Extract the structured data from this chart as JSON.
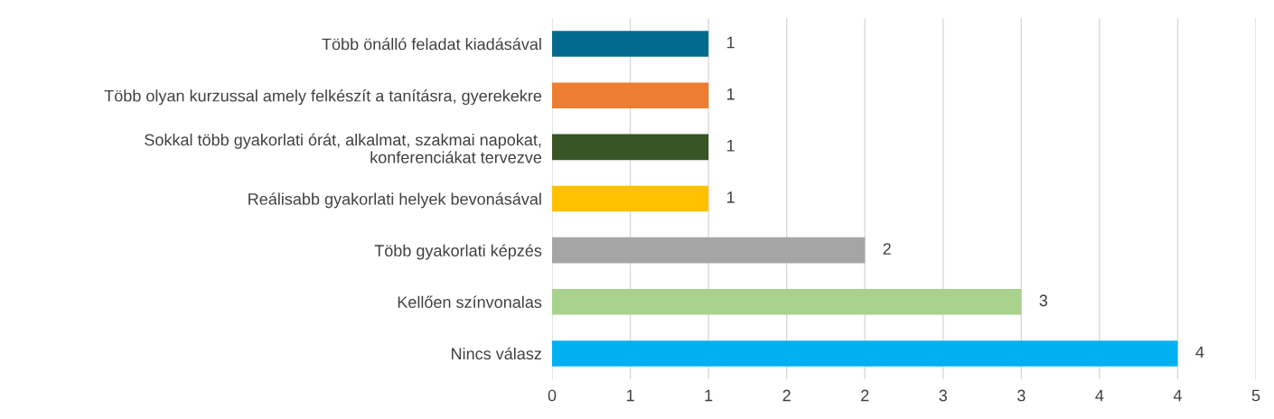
{
  "chart_data": {
    "type": "bar",
    "orientation": "horizontal",
    "categories": [
      "Több önálló feladat kiadásával",
      "Több olyan kurzussal amely felkészít a tanításra, gyerekekre",
      "Sokkal több gyakorlati órát, alkalmat, szakmai napokat,\nkonferenciákat tervezve",
      "Reálisabb gyakorlati helyek bevonásával",
      "Több gyakorlati képzés",
      "Kellően színvonalas",
      "Nincs válasz"
    ],
    "values": [
      1,
      1,
      1,
      1,
      2,
      3,
      4
    ],
    "colors": [
      "#006a8e",
      "#ed7d31",
      "#375623",
      "#ffc000",
      "#a5a5a5",
      "#a9d18e",
      "#00b0f0"
    ],
    "xlim": [
      0,
      4.5
    ],
    "xticks": [
      0,
      {
        "value": 0.5,
        "label": "1"
      },
      1,
      {
        "value": 1.5,
        "label": "2"
      },
      2,
      {
        "value": 2.5,
        "label": "3"
      },
      3,
      {
        "value": 3.5,
        "label": "4"
      },
      4,
      {
        "value": 4.5,
        "label": "5"
      }
    ],
    "grid": "x",
    "data_labels": true,
    "legend": false
  }
}
